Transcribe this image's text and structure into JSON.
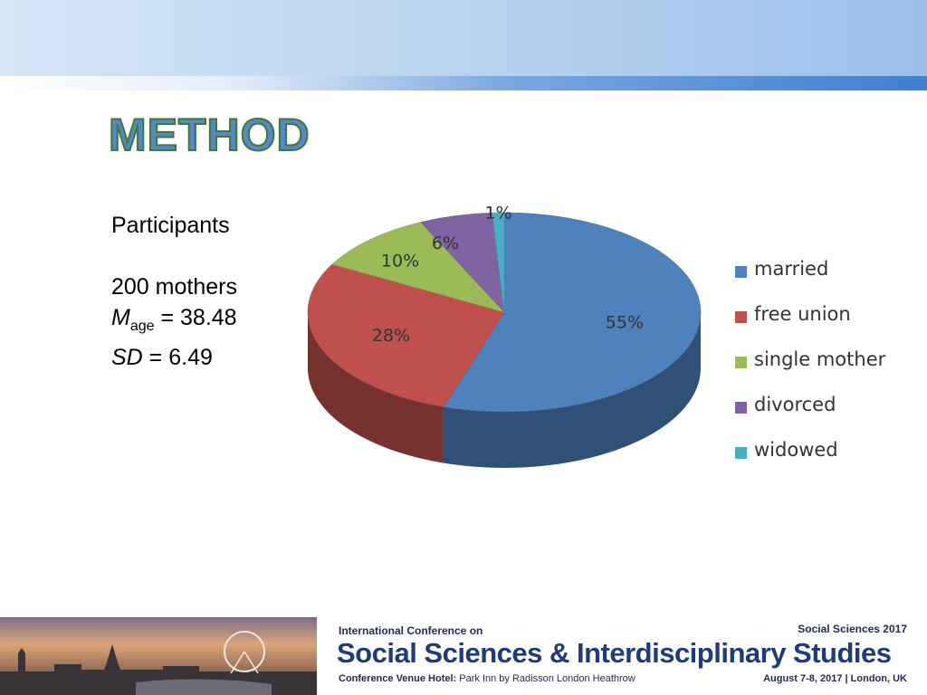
{
  "title": "METHOD",
  "participants": {
    "heading": "Participants",
    "count": "200 mothers",
    "mean_symbol": "M",
    "mean_sub": "age",
    "mean_value": " = 38.48",
    "sd_symbol": "SD",
    "sd_value": " = 6.49"
  },
  "chart_data": {
    "type": "pie",
    "style": "3d",
    "categories": [
      "married",
      "free union",
      "single mother",
      "divorced",
      "widowed"
    ],
    "values": [
      55,
      28,
      10,
      6,
      1
    ],
    "value_labels": [
      "55%",
      "28%",
      "10%",
      "6%",
      "1%"
    ],
    "colors": [
      "#4f81bd",
      "#c0504d",
      "#9bbb59",
      "#8064a2",
      "#4bacc6"
    ],
    "legend_position": "right"
  },
  "footer": {
    "conf_small": "International Conference on",
    "conf_year": "Social Sciences 2017",
    "conf_main": "Social Sciences & Interdisciplinary Studies",
    "venue_label": "Conference Venue Hotel:",
    "venue_value": "Park Inn by Radisson London Heathrow",
    "date": "August 7-8, 2017 | London, UK"
  }
}
